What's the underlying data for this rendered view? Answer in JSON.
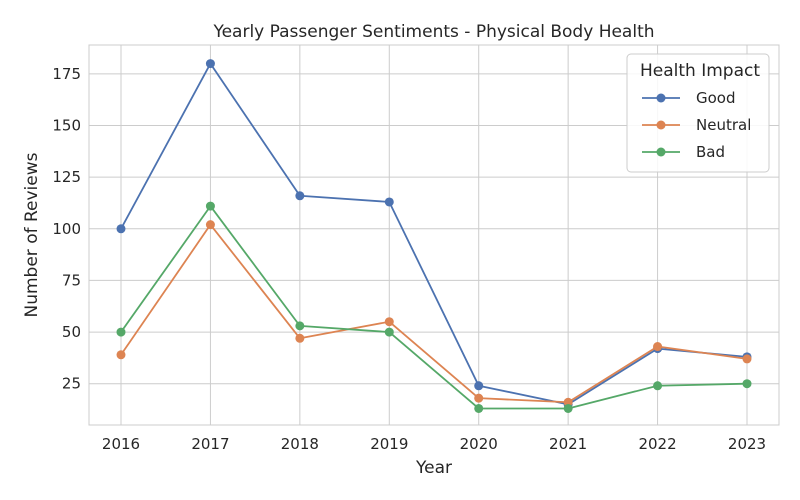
{
  "chart_data": {
    "type": "line",
    "title": "Yearly Passenger Sentiments - Physical Body Health",
    "xlabel": "Year",
    "ylabel": "Number of Reviews",
    "x": [
      "2016",
      "2017",
      "2018",
      "2019",
      "2020",
      "2021",
      "2022",
      "2023"
    ],
    "yticks": [
      25,
      50,
      75,
      100,
      125,
      150,
      175
    ],
    "ylim": [
      5,
      189
    ],
    "grid": true,
    "legend": {
      "title": "Health Impact",
      "placement": "top-right"
    },
    "series": [
      {
        "name": "Good",
        "color": "#4c72b0",
        "values": [
          100,
          180,
          116,
          113,
          24,
          15,
          42,
          38
        ]
      },
      {
        "name": "Neutral",
        "color": "#dd8452",
        "values": [
          39,
          102,
          47,
          55,
          18,
          16,
          43,
          37
        ]
      },
      {
        "name": "Bad",
        "color": "#55a868",
        "values": [
          50,
          111,
          53,
          50,
          13,
          13,
          24,
          25
        ]
      }
    ]
  }
}
